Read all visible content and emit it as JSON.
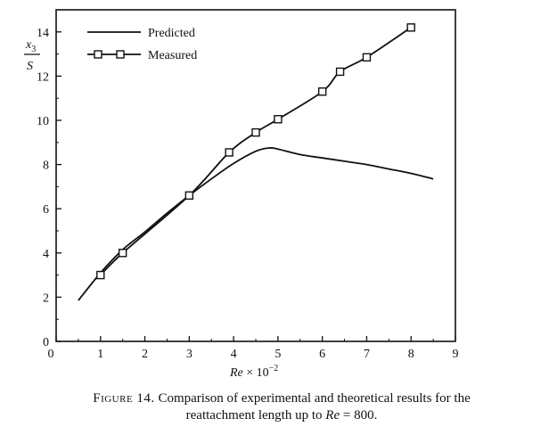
{
  "chart_data": {
    "type": "line",
    "title": "",
    "xlabel": {
      "prefix": "Re",
      "middle": " × 10",
      "exponent": "−2"
    },
    "ylabel": {
      "numerator": "x",
      "subscript": "3",
      "denominator": "S"
    },
    "xlim": [
      0,
      9
    ],
    "ylim": [
      0,
      15
    ],
    "xticks": [
      "0",
      "1",
      "2",
      "3",
      "4",
      "5",
      "6",
      "7",
      "8",
      "9"
    ],
    "yticks": [
      "0",
      "2",
      "4",
      "6",
      "8",
      "10",
      "12",
      "14"
    ],
    "grid": false,
    "legend_position": "top-left",
    "series": [
      {
        "name": "Predicted",
        "style": "solid-line",
        "x": [
          0.5,
          1.0,
          1.5,
          2.0,
          2.5,
          3.0,
          3.5,
          4.0,
          4.5,
          4.8,
          5.0,
          5.5,
          6.0,
          6.5,
          7.0,
          7.5,
          8.0,
          8.5
        ],
        "y": [
          1.85,
          3.1,
          4.15,
          4.95,
          5.8,
          6.6,
          7.35,
          8.05,
          8.6,
          8.75,
          8.7,
          8.45,
          8.3,
          8.15,
          8.0,
          7.8,
          7.6,
          7.35
        ]
      },
      {
        "name": "Measured",
        "style": "line-with-square-markers",
        "x": [
          1.0,
          1.5,
          3.0,
          3.9,
          4.5,
          5.0,
          6.0,
          6.4,
          7.0,
          8.0
        ],
        "y": [
          3.0,
          4.0,
          6.6,
          8.55,
          9.45,
          10.05,
          11.3,
          12.2,
          12.85,
          14.2
        ]
      }
    ]
  },
  "caption": {
    "figure_label": "Figure 14.",
    "line1": " Comparison of experimental and theoretical results for the",
    "line2_prefix": "reattachment length up to ",
    "line2_italic": "Re",
    "line2_suffix": " = 800."
  }
}
